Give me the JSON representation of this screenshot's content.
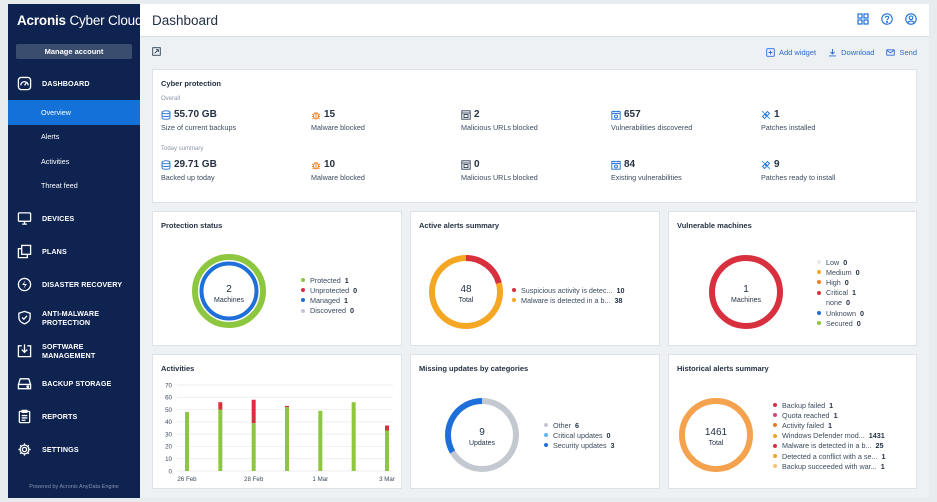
{
  "sidebar": {
    "brand_bold": "Acronis",
    "brand_light": "Cyber Cloud",
    "manage_account": "Manage account",
    "dashboard_label": "DASHBOARD",
    "sub_items": [
      "Overview",
      "Alerts",
      "Activities",
      "Threat feed"
    ],
    "items": [
      {
        "label": "DEVICES",
        "icon": "monitor-icon"
      },
      {
        "label": "PLANS",
        "icon": "plans-icon"
      },
      {
        "label": "DISASTER RECOVERY",
        "icon": "bolt-icon"
      },
      {
        "label": "ANTI-MALWARE\nPROTECTION",
        "icon": "shield-icon"
      },
      {
        "label": "SOFTWARE\nMANAGEMENT",
        "icon": "download-box-icon"
      },
      {
        "label": "BACKUP STORAGE",
        "icon": "storage-icon"
      },
      {
        "label": "REPORTS",
        "icon": "report-icon"
      },
      {
        "label": "SETTINGS",
        "icon": "gear-icon"
      }
    ],
    "powered_by": "Powered by Acronis AnyData Engine"
  },
  "header": {
    "title": "Dashboard"
  },
  "actions": {
    "add_widget": "Add widget",
    "download": "Download",
    "send": "Send"
  },
  "cyber_protection": {
    "title": "Cyber protection",
    "overall_label": "Overall",
    "today_label": "Today summary",
    "overall": [
      {
        "value": "55.70 GB",
        "label": "Size of current backups",
        "icon": "database-icon"
      },
      {
        "value": "15",
        "label": "Malware blocked",
        "icon": "bug-icon"
      },
      {
        "value": "2",
        "label": "Malicious URLs blocked",
        "icon": "browser-icon"
      },
      {
        "value": "657",
        "label": "Vulnerabilities discovered",
        "icon": "calendar-bug-icon"
      },
      {
        "value": "1",
        "label": "Patches installed",
        "icon": "patch-icon"
      }
    ],
    "today": [
      {
        "value": "29.71 GB",
        "label": "Backed up today",
        "icon": "database-icon"
      },
      {
        "value": "10",
        "label": "Malware blocked",
        "icon": "bug-icon"
      },
      {
        "value": "0",
        "label": "Malicious URLs blocked",
        "icon": "browser-icon"
      },
      {
        "value": "84",
        "label": "Existing vulnerabilities",
        "icon": "calendar-bug-icon"
      },
      {
        "value": "9",
        "label": "Patches ready to install",
        "icon": "patch-icon"
      }
    ]
  },
  "protection_status": {
    "title": "Protection status",
    "center_value": "2",
    "center_label": "Machines",
    "legend": [
      {
        "label": "Protected",
        "count": "1",
        "color": "#8dc63f"
      },
      {
        "label": "Unprotected",
        "count": "0",
        "color": "#d9303f"
      },
      {
        "label": "Managed",
        "count": "1",
        "color": "#1e6fd9"
      },
      {
        "label": "Discovered",
        "count": "0",
        "color": "#c4c9d1"
      }
    ]
  },
  "active_alerts": {
    "title": "Active alerts summary",
    "center_value": "48",
    "center_label": "Total",
    "legend": [
      {
        "label": "Suspicious activity is detec...",
        "count": "10",
        "color": "#d9303f"
      },
      {
        "label": "Malware is detected in a b...",
        "count": "38",
        "color": "#f5a623"
      }
    ]
  },
  "vulnerable_machines": {
    "title": "Vulnerable machines",
    "center_value": "1",
    "center_label": "Machines",
    "legend": [
      {
        "label": "Low",
        "count": "0",
        "color": "#e8eaed"
      },
      {
        "label": "Medium",
        "count": "0",
        "color": "#f5a623"
      },
      {
        "label": "High",
        "count": "0",
        "color": "#f07d20"
      },
      {
        "label": "Critical",
        "count": "1",
        "color": "#d9303f"
      },
      {
        "label": "none",
        "count": "0",
        "color": ""
      },
      {
        "label": "Unknown",
        "count": "0",
        "color": "#1e6fd9"
      },
      {
        "label": "Secured",
        "count": "0",
        "color": "#8dc63f"
      }
    ]
  },
  "missing_updates": {
    "title": "Missing updates by categories",
    "center_value": "9",
    "center_label": "Updates",
    "legend": [
      {
        "label": "Other",
        "count": "6",
        "color": "#c4c9d1"
      },
      {
        "label": "Critical updates",
        "count": "0",
        "color": "#64b5f6"
      },
      {
        "label": "Security updates",
        "count": "3",
        "color": "#1e6fd9"
      }
    ]
  },
  "historical_alerts": {
    "title": "Historical alerts summary",
    "center_value": "1461",
    "center_label": "Total",
    "legend": [
      {
        "label": "Backup failed",
        "count": "1",
        "color": "#d9303f"
      },
      {
        "label": "Quota reached",
        "count": "1",
        "color": "#e0407a"
      },
      {
        "label": "Activity failed",
        "count": "1",
        "color": "#f07d20"
      },
      {
        "label": "Windows Defender mod...",
        "count": "1431",
        "color": "#f5a623"
      },
      {
        "label": "Malware is detected in a b...",
        "count": "25",
        "color": "#d9303f"
      },
      {
        "label": "Detected a conflict with a se...",
        "count": "1",
        "color": "#f5a623"
      },
      {
        "label": "Backup succeeded with war...",
        "count": "1",
        "color": "#f6c56b"
      }
    ]
  },
  "activities": {
    "title": "Activities",
    "chart_data": {
      "type": "bar",
      "stacked": true,
      "categories": [
        "26 Feb",
        "",
        "28 Feb",
        "",
        "1 Mar",
        "",
        "3 Mar"
      ],
      "xtick_labels": [
        "26 Feb",
        "28 Feb",
        "1 Mar",
        "3 Mar"
      ],
      "yticks": [
        0,
        10,
        20,
        30,
        40,
        50,
        60,
        70
      ],
      "ylim": [
        0,
        70
      ],
      "series": [
        {
          "values": [
            48,
            50,
            39,
            52,
            49,
            56,
            33
          ],
          "color": "#8dc63f"
        },
        {
          "values": [
            0,
            6,
            19,
            1,
            0,
            0,
            4
          ],
          "color": "#d9303f"
        }
      ]
    }
  }
}
